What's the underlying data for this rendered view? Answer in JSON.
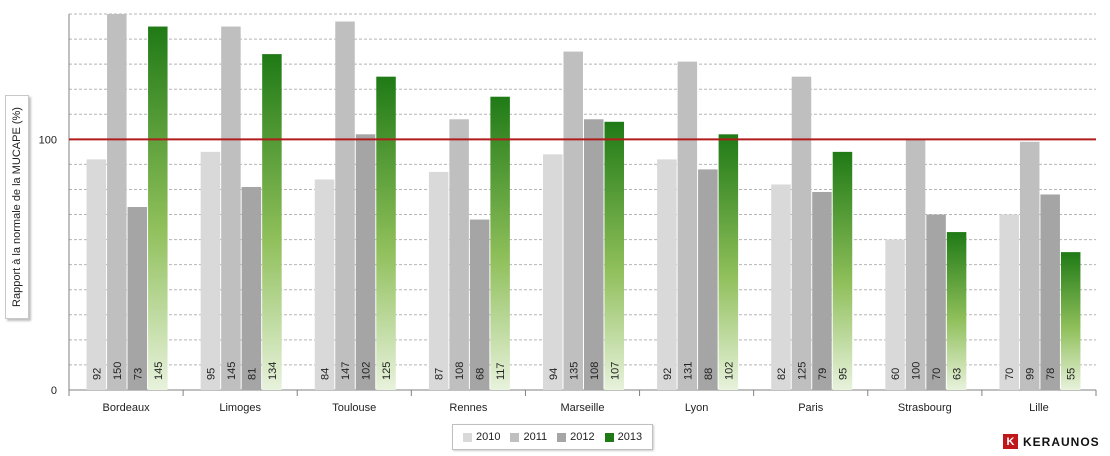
{
  "chart_data": {
    "type": "bar",
    "ylabel": "Rapport à la normale de la MUCAPE (%)",
    "ylim": [
      0,
      150
    ],
    "yticks": [
      0,
      100
    ],
    "reference_line": 100,
    "categories": [
      "Bordeaux",
      "Limoges",
      "Toulouse",
      "Rennes",
      "Marseille",
      "Lyon",
      "Paris",
      "Strasbourg",
      "Lille"
    ],
    "series": [
      {
        "name": "2010",
        "color": "#d9d9d9",
        "values": [
          92,
          95,
          84,
          87,
          94,
          92,
          82,
          60,
          70
        ]
      },
      {
        "name": "2011",
        "color": "#bfbfbf",
        "values": [
          150,
          145,
          147,
          108,
          135,
          131,
          125,
          100,
          99
        ]
      },
      {
        "name": "2012",
        "color": "#a5a5a5",
        "values": [
          73,
          81,
          102,
          68,
          108,
          88,
          79,
          70,
          78
        ]
      },
      {
        "name": "2013",
        "color": "#2e8b1e",
        "values": [
          145,
          134,
          125,
          117,
          107,
          102,
          95,
          63,
          55
        ]
      }
    ],
    "grid": true,
    "legend_position": "bottom"
  },
  "brand": {
    "logo_letter": "K",
    "name": "KERAUNOS"
  },
  "colors": {
    "reference_line": "#b01c1c",
    "green_top": "#1f7a16",
    "green_bottom": "#e8f2dc"
  }
}
